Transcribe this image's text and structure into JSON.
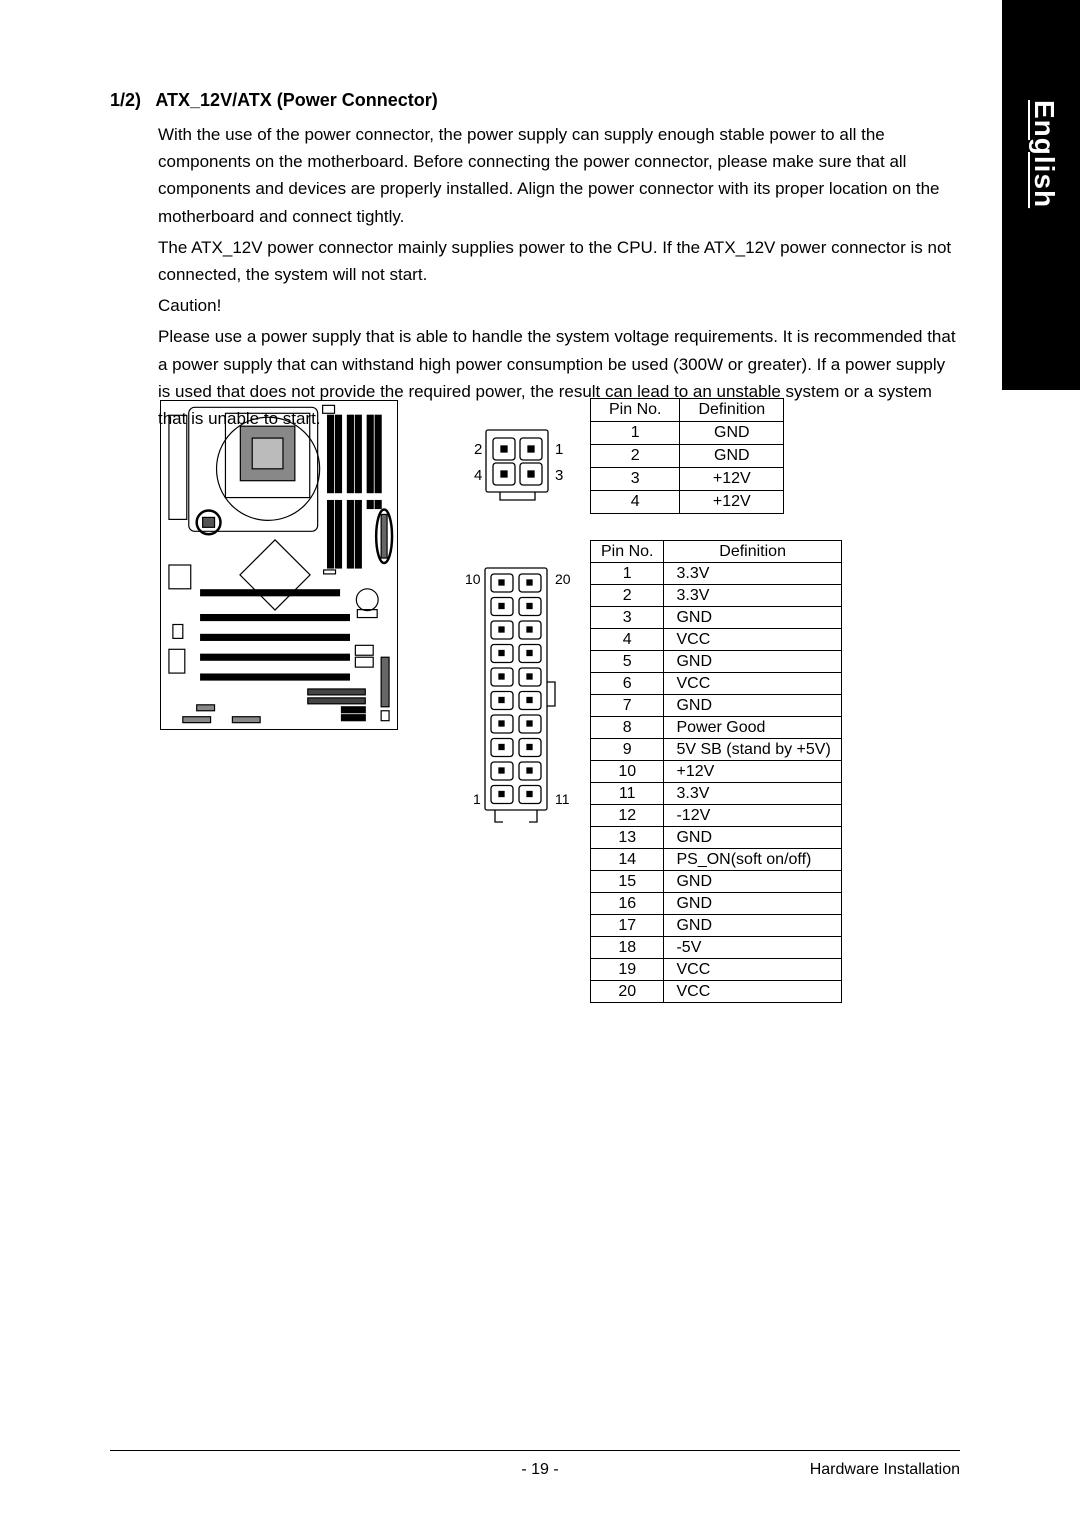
{
  "language_tab": "English",
  "section": {
    "number": "1/2)",
    "title": "ATX_12V/ATX (Power Connector)"
  },
  "paragraphs": {
    "p1": "With the use of the power connector, the power supply can supply enough stable power to all the components on the motherboard. Before connecting the power connector, please make sure that all components and devices are properly installed.  Align the power connector with its proper location on the motherboard and connect tightly.",
    "p2": "The ATX_12V power connector mainly supplies power to the CPU. If the ATX_12V power connector is not connected, the system will not start.",
    "p3": "Caution!",
    "p4": "Please use a power supply that is able to handle the system voltage requirements.  It is recommended that a power supply that can withstand high power consumption be used (300W or greater).  If a power supply is used that does not provide the required power, the result can lead to an unstable system or a system that is unable to start."
  },
  "connector4": {
    "labels": {
      "tl": "2",
      "tr": "1",
      "bl": "4",
      "br": "3"
    }
  },
  "connector20": {
    "labels": {
      "tl": "10",
      "tr": "20",
      "bl": "1",
      "br": "11"
    }
  },
  "table4": {
    "columns": [
      "Pin No.",
      "Definition"
    ],
    "rows": [
      [
        "1",
        "GND"
      ],
      [
        "2",
        "GND"
      ],
      [
        "3",
        "+12V"
      ],
      [
        "4",
        "+12V"
      ]
    ]
  },
  "table20": {
    "columns": [
      "Pin No.",
      "Definition"
    ],
    "rows": [
      [
        "1",
        "3.3V"
      ],
      [
        "2",
        "3.3V"
      ],
      [
        "3",
        "GND"
      ],
      [
        "4",
        "VCC"
      ],
      [
        "5",
        "GND"
      ],
      [
        "6",
        "VCC"
      ],
      [
        "7",
        "GND"
      ],
      [
        "8",
        "Power Good"
      ],
      [
        "9",
        "5V SB (stand by +5V)"
      ],
      [
        "10",
        "+12V"
      ],
      [
        "11",
        "3.3V"
      ],
      [
        "12",
        "-12V"
      ],
      [
        "13",
        "GND"
      ],
      [
        "14",
        "PS_ON(soft on/off)"
      ],
      [
        "15",
        "GND"
      ],
      [
        "16",
        "GND"
      ],
      [
        "17",
        "GND"
      ],
      [
        "18",
        "-5V"
      ],
      [
        "19",
        "VCC"
      ],
      [
        "20",
        "VCC"
      ]
    ]
  },
  "footer": {
    "page": "- 19 -",
    "right": "Hardware Installation"
  },
  "colors": {
    "page_bg": "#ffffff",
    "text": "#000000",
    "bar_bg": "#000000",
    "bar_text": "#ffffff",
    "stroke": "#000000"
  }
}
